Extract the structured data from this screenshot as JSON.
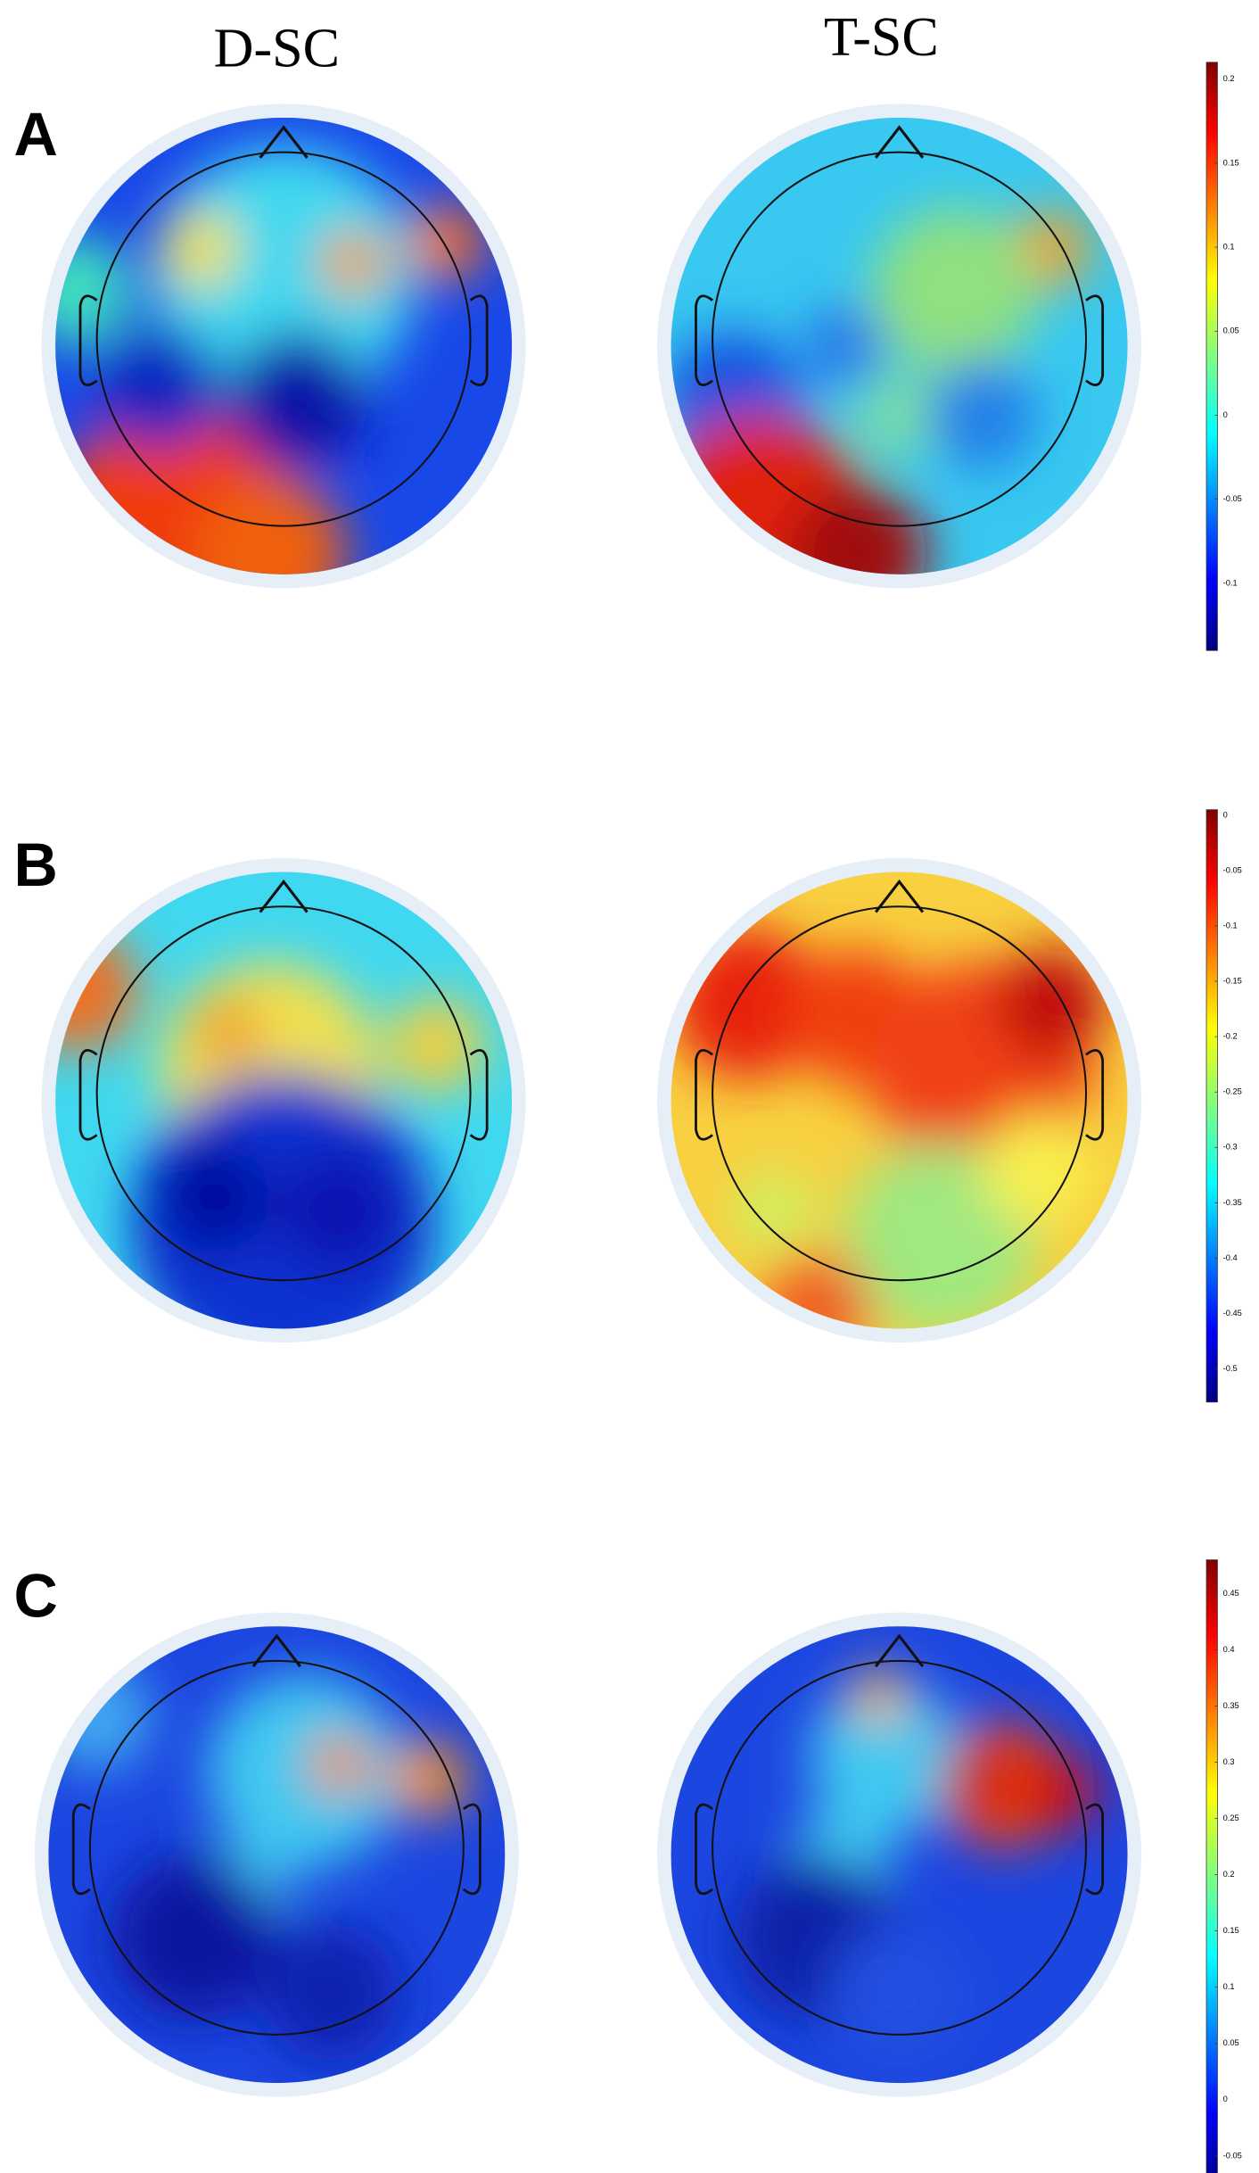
{
  "columns": [
    "D-SC",
    "T-SC"
  ],
  "panels": [
    {
      "label": "A",
      "colorbar": {
        "lim": [
          -0.14,
          0.21
        ],
        "ticks": [
          0.2,
          0.15,
          0.1,
          0.05,
          0,
          -0.05,
          -0.1
        ]
      }
    },
    {
      "label": "B",
      "colorbar": {
        "lim": [
          -0.53,
          0.005
        ],
        "ticks": [
          0,
          -0.05,
          -0.1,
          -0.15,
          -0.2,
          -0.25,
          -0.3,
          -0.35,
          -0.4,
          -0.45,
          -0.5
        ]
      }
    },
    {
      "label": "C",
      "colorbar": {
        "lim": [
          -0.08,
          0.48
        ],
        "ticks": [
          0.45,
          0.4,
          0.35,
          0.3,
          0.25,
          0.2,
          0.15,
          0.1,
          0.05,
          0,
          -0.05
        ]
      }
    }
  ]
}
